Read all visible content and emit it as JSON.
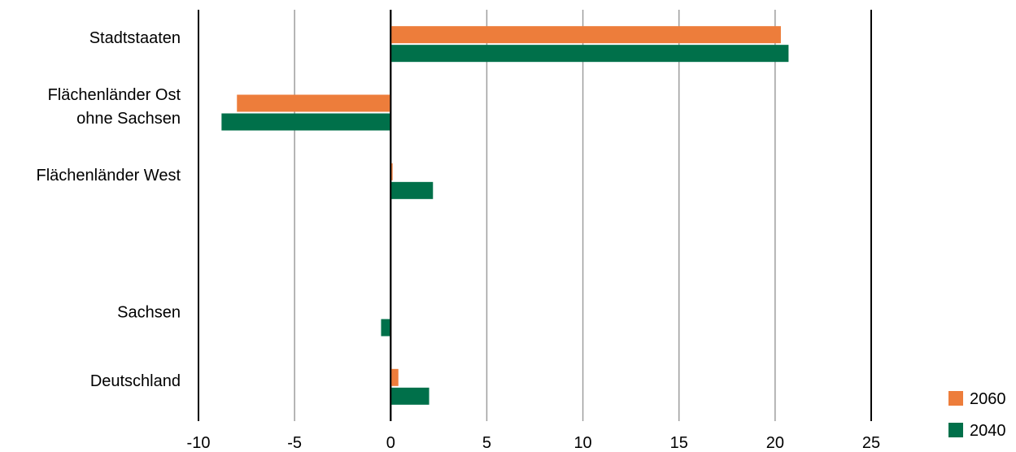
{
  "chart_data": {
    "type": "bar",
    "orientation": "horizontal",
    "categories": [
      [
        "Stadtstaaten"
      ],
      [
        "Flächenländer Ost",
        "ohne Sachsen"
      ],
      [
        "Flächenländer West"
      ],
      [
        ""
      ],
      [
        "Sachsen"
      ],
      [
        "Deutschland"
      ]
    ],
    "series": [
      {
        "name": "2060",
        "color": "#ED7D3B",
        "values": [
          20.3,
          -8.0,
          0.1,
          null,
          null,
          0.4
        ]
      },
      {
        "name": "2040",
        "color": "#00704A",
        "values": [
          20.7,
          -8.8,
          2.2,
          null,
          -0.5,
          2.0
        ]
      }
    ],
    "xlim": [
      -10,
      25
    ],
    "xticks": [
      -10,
      -5,
      0,
      5,
      10,
      15,
      20,
      25
    ],
    "grid": true,
    "legend_position": "bottom-right",
    "legend_order": [
      "2060",
      "2040"
    ]
  }
}
